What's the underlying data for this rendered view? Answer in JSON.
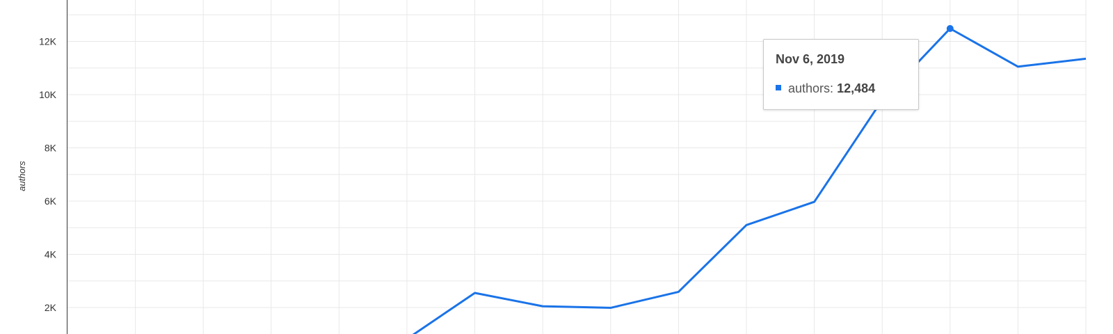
{
  "colors": {
    "series": "#1a73e8",
    "grid": "#e8e8e8",
    "axis": "#333333"
  },
  "chart_data": {
    "type": "line",
    "xlabel": "",
    "ylabel": "authors",
    "ylim": [
      0,
      13200
    ],
    "yticks": [
      {
        "value": 2000,
        "label": "2K"
      },
      {
        "value": 4000,
        "label": "4K"
      },
      {
        "value": 6000,
        "label": "6K"
      },
      {
        "value": 8000,
        "label": "8K"
      },
      {
        "value": 10000,
        "label": "10K"
      },
      {
        "value": 12000,
        "label": "12K"
      }
    ],
    "grid": true,
    "series": [
      {
        "name": "authors",
        "values": [
          null,
          null,
          null,
          null,
          null,
          820,
          2550,
          2050,
          1990,
          2590,
          5100,
          5970,
          9800,
          12484,
          11050,
          11350
        ]
      }
    ],
    "highlight_index": 13
  },
  "tooltip": {
    "title": "Nov 6, 2019",
    "label": "authors:",
    "value": "12,484",
    "icon": "square-swatch-icon"
  }
}
